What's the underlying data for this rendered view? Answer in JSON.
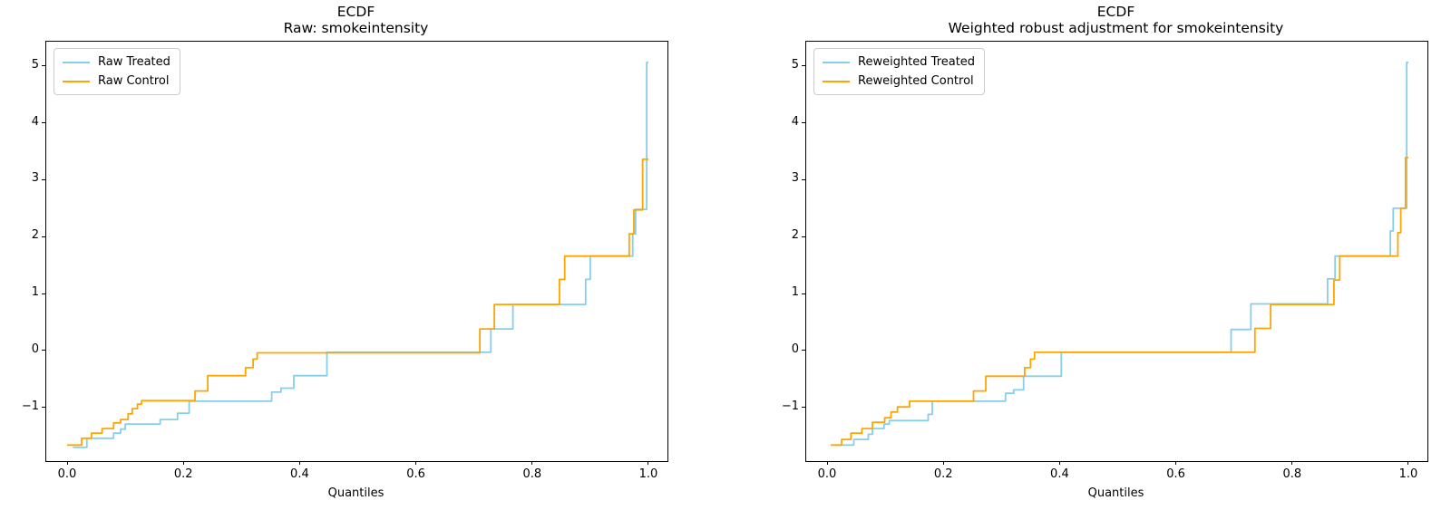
{
  "figure": {
    "background": "#ffffff"
  },
  "colors": {
    "treated": "#87ceeb",
    "control": "#ffa500",
    "spine": "#000000"
  },
  "chart_data": [
    {
      "type": "line",
      "step_style": "post",
      "title_line1": "ECDF",
      "title_line2": "Raw: smokeintensity",
      "xlabel": "Quantiles",
      "xlim": [
        -0.0359,
        1.0328
      ],
      "ylim": [
        -1.941,
        5.425
      ],
      "x_ticks": [
        0.0,
        0.2,
        0.4,
        0.6,
        0.8,
        1.0
      ],
      "x_tick_labels": [
        "0.0",
        "0.2",
        "0.4",
        "0.6",
        "0.8",
        "1.0"
      ],
      "y_ticks": [
        -1,
        0,
        1,
        2,
        3,
        4,
        5
      ],
      "y_tick_labels": [
        "−1",
        "0",
        "1",
        "2",
        "3",
        "4",
        "5"
      ],
      "grid": false,
      "legend_position": "upper left",
      "series": [
        {
          "name": "Raw Treated",
          "color": "#87ceeb",
          "end_x": 1.0,
          "steps": [
            [
              0.01,
              -1.7
            ],
            [
              0.034,
              -1.54
            ],
            [
              0.08,
              -1.45
            ],
            [
              0.092,
              -1.38
            ],
            [
              0.1,
              -1.29
            ],
            [
              0.16,
              -1.21
            ],
            [
              0.19,
              -1.1
            ],
            [
              0.21,
              -0.89
            ],
            [
              0.352,
              -0.73
            ],
            [
              0.368,
              -0.66
            ],
            [
              0.39,
              -0.44
            ],
            [
              0.447,
              -0.03
            ],
            [
              0.729,
              0.38
            ],
            [
              0.767,
              0.81
            ],
            [
              0.892,
              1.25
            ],
            [
              0.9,
              1.66
            ],
            [
              0.973,
              2.05
            ],
            [
              0.978,
              2.48
            ],
            [
              0.997,
              5.06
            ]
          ]
        },
        {
          "name": "Raw Control",
          "color": "#ffa500",
          "end_x": 1.0,
          "steps": [
            [
              0.0,
              -1.66
            ],
            [
              0.025,
              -1.54
            ],
            [
              0.042,
              -1.45
            ],
            [
              0.06,
              -1.37
            ],
            [
              0.08,
              -1.27
            ],
            [
              0.092,
              -1.21
            ],
            [
              0.105,
              -1.11
            ],
            [
              0.112,
              -1.02
            ],
            [
              0.121,
              -0.94
            ],
            [
              0.128,
              -0.88
            ],
            [
              0.22,
              -0.71
            ],
            [
              0.242,
              -0.44
            ],
            [
              0.307,
              -0.3
            ],
            [
              0.32,
              -0.15
            ],
            [
              0.327,
              -0.04
            ],
            [
              0.71,
              0.38
            ],
            [
              0.735,
              0.81
            ],
            [
              0.847,
              1.25
            ],
            [
              0.856,
              1.66
            ],
            [
              0.967,
              2.05
            ],
            [
              0.975,
              2.47
            ],
            [
              0.99,
              3.36
            ]
          ]
        }
      ]
    },
    {
      "type": "line",
      "step_style": "post",
      "title_line1": "ECDF",
      "title_line2": "Weighted robust adjustment for smokeintensity",
      "xlabel": "Quantiles",
      "xlim": [
        -0.0359,
        1.0328
      ],
      "ylim": [
        -1.941,
        5.425
      ],
      "x_ticks": [
        0.0,
        0.2,
        0.4,
        0.6,
        0.8,
        1.0
      ],
      "x_tick_labels": [
        "0.0",
        "0.2",
        "0.4",
        "0.6",
        "0.8",
        "1.0"
      ],
      "y_ticks": [
        -1,
        0,
        1,
        2,
        3,
        4,
        5
      ],
      "y_tick_labels": [
        "−1",
        "0",
        "1",
        "2",
        "3",
        "4",
        "5"
      ],
      "grid": false,
      "legend_position": "upper left",
      "series": [
        {
          "name": "Reweighted Treated",
          "color": "#87ceeb",
          "end_x": 1.0,
          "steps": [
            [
              0.014,
              -1.66
            ],
            [
              0.046,
              -1.56
            ],
            [
              0.071,
              -1.47
            ],
            [
              0.078,
              -1.37
            ],
            [
              0.098,
              -1.29
            ],
            [
              0.107,
              -1.23
            ],
            [
              0.174,
              -1.12
            ],
            [
              0.181,
              -0.89
            ],
            [
              0.307,
              -0.75
            ],
            [
              0.321,
              -0.69
            ],
            [
              0.338,
              -0.45
            ],
            [
              0.403,
              -0.03
            ],
            [
              0.695,
              0.37
            ],
            [
              0.729,
              0.82
            ],
            [
              0.861,
              1.26
            ],
            [
              0.874,
              1.66
            ],
            [
              0.969,
              2.1
            ],
            [
              0.974,
              2.5
            ],
            [
              0.997,
              5.06
            ]
          ]
        },
        {
          "name": "Reweighted Control",
          "color": "#ffa500",
          "end_x": 1.0,
          "steps": [
            [
              0.006,
              -1.66
            ],
            [
              0.025,
              -1.56
            ],
            [
              0.041,
              -1.45
            ],
            [
              0.06,
              -1.37
            ],
            [
              0.078,
              -1.26
            ],
            [
              0.099,
              -1.18
            ],
            [
              0.11,
              -1.08
            ],
            [
              0.121,
              -0.99
            ],
            [
              0.142,
              -0.89
            ],
            [
              0.252,
              -0.71
            ],
            [
              0.273,
              -0.45
            ],
            [
              0.34,
              -0.3
            ],
            [
              0.35,
              -0.15
            ],
            [
              0.357,
              -0.03
            ],
            [
              0.736,
              0.39
            ],
            [
              0.763,
              0.81
            ],
            [
              0.872,
              1.24
            ],
            [
              0.882,
              1.66
            ],
            [
              0.982,
              2.07
            ],
            [
              0.987,
              2.5
            ],
            [
              0.995,
              3.39
            ]
          ]
        }
      ]
    }
  ]
}
